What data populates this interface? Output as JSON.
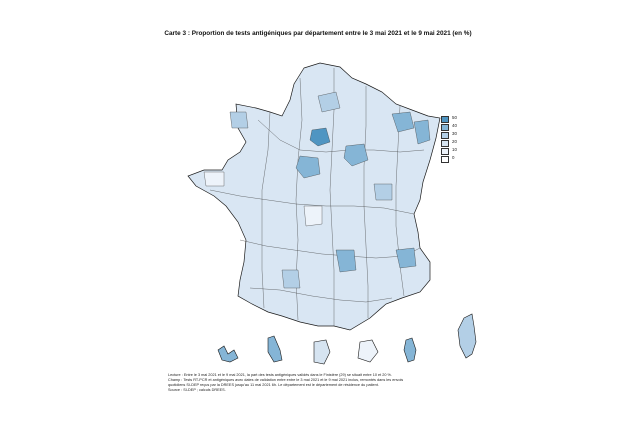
{
  "title": "Carte 3 : Proportion de tests antigéniques par département entre le 3 mai 2021 et le 9 mai 2021 (en %)",
  "legend": {
    "items": [
      {
        "label": "50",
        "color": "#4f95c2"
      },
      {
        "label": "40",
        "color": "#85b5d6"
      },
      {
        "label": "30",
        "color": "#b3cfe6"
      },
      {
        "label": "20",
        "color": "#d6e4f1"
      },
      {
        "label": "10",
        "color": "#edf3fa"
      },
      {
        "label": "0",
        "color": "#ffffff"
      }
    ]
  },
  "map": {
    "land_fill": "#d9e6f3",
    "border_color": "#1a1a1a",
    "regions": [
      "metropole",
      "guadeloupe",
      "martinique",
      "guyane",
      "reunion",
      "mayotte",
      "corse"
    ]
  },
  "notes": {
    "lecture": "Lecture : Entre le 3 mai 2021 et le 9 mai 2021, la part des tests antigéniques validés dans le Finistère (29) se situait entre 10 et 20 %.",
    "champ": "Champ : Tests RT-PCR et antigéniques avec dates de validation entre entre le 3 mai 2021 et le 9 mai 2021 inclus, remontés dans les envois",
    "champ2": "quotidiens SI-DEP reçus par la DREES jusqu'au 11 mai 2021 6h. Le département est le département de résidence du patient.",
    "source": "Source : SI-DEP ; calculs DREES."
  }
}
